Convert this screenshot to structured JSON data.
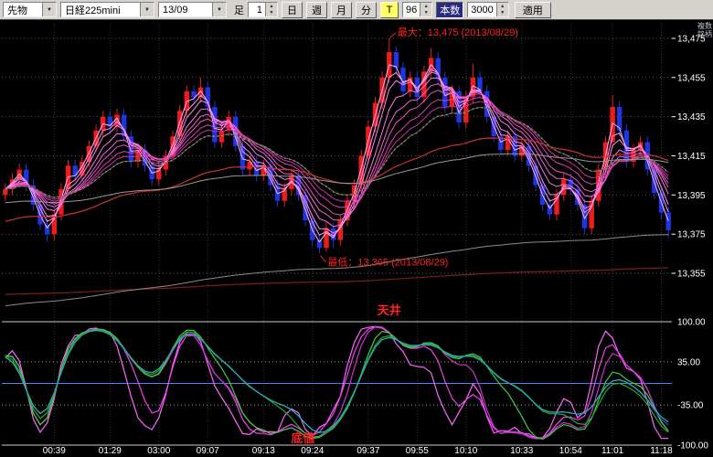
{
  "toolbar": {
    "instrument": "先物",
    "symbol": "日経225mini",
    "contract": "13/09",
    "interval_label": "足",
    "interval_value": "1",
    "day": "日",
    "week": "週",
    "month": "月",
    "minute": "分",
    "tick": "T",
    "bars_value": "96",
    "bars_label": "本数",
    "count_value": "3000",
    "apply": "適用",
    "multi_symbol": "複数銘柄"
  },
  "chart_data": {
    "type": "candlestick",
    "title": "日経225mini 13/09",
    "date": "2013/08/29",
    "y_axis": {
      "labels": [
        "13,475",
        "13,455",
        "13,435",
        "13,415",
        "13,395",
        "13,375",
        "13,355"
      ],
      "values": [
        13475,
        13455,
        13435,
        13415,
        13395,
        13375,
        13355
      ],
      "max": 13475,
      "min": 13365
    },
    "lower_axis": {
      "labels": [
        "100.00",
        "35.00",
        "-35.00",
        "-100.00"
      ],
      "values": [
        100,
        35,
        -35,
        -100
      ]
    },
    "x_labels": [
      {
        "t": "00:39",
        "i": 7
      },
      {
        "t": "01:29",
        "i": 15
      },
      {
        "t": "03:00",
        "i": 22
      },
      {
        "t": "09:07",
        "i": 29
      },
      {
        "t": "09:13",
        "i": 37
      },
      {
        "t": "09:24",
        "i": 44
      },
      {
        "t": "09:37",
        "i": 52
      },
      {
        "t": "09:55",
        "i": 59
      },
      {
        "t": "10:10",
        "i": 66
      },
      {
        "t": "10:33",
        "i": 74
      },
      {
        "t": "10:54",
        "i": 81
      },
      {
        "t": "11:01",
        "i": 87
      },
      {
        "t": "11:18",
        "i": 94
      }
    ],
    "candles": [
      [
        13395,
        13401,
        13392,
        13398
      ],
      [
        13398,
        13406,
        13395,
        13403
      ],
      [
        13403,
        13411,
        13400,
        13408
      ],
      [
        13408,
        13411,
        13397,
        13400
      ],
      [
        13400,
        13403,
        13387,
        13390
      ],
      [
        13390,
        13393,
        13377,
        13380
      ],
      [
        13380,
        13383,
        13371,
        13375
      ],
      [
        13375,
        13388,
        13372,
        13385
      ],
      [
        13385,
        13401,
        13382,
        13398
      ],
      [
        13398,
        13413,
        13395,
        13410
      ],
      [
        13410,
        13413,
        13402,
        13405
      ],
      [
        13405,
        13415,
        13402,
        13412
      ],
      [
        13412,
        13423,
        13409,
        13420
      ],
      [
        13420,
        13431,
        13417,
        13428
      ],
      [
        13428,
        13438,
        13425,
        13435
      ],
      [
        13435,
        13438,
        13427,
        13430
      ],
      [
        13430,
        13439,
        13427,
        13436
      ],
      [
        13436,
        13439,
        13422,
        13425
      ],
      [
        13425,
        13428,
        13409,
        13412
      ],
      [
        13412,
        13421,
        13409,
        13418
      ],
      [
        13418,
        13421,
        13407,
        13410
      ],
      [
        13410,
        13413,
        13400,
        13403
      ],
      [
        13403,
        13411,
        13400,
        13408
      ],
      [
        13408,
        13418,
        13405,
        13415
      ],
      [
        13415,
        13428,
        13412,
        13425
      ],
      [
        13425,
        13441,
        13422,
        13438
      ],
      [
        13438,
        13451,
        13435,
        13448
      ],
      [
        13448,
        13451,
        13442,
        13445
      ],
      [
        13445,
        13455,
        13442,
        13450
      ],
      [
        13450,
        13453,
        13437,
        13440
      ],
      [
        13440,
        13443,
        13419,
        13422
      ],
      [
        13422,
        13431,
        13419,
        13428
      ],
      [
        13428,
        13438,
        13425,
        13435
      ],
      [
        13435,
        13438,
        13417,
        13420
      ],
      [
        13420,
        13423,
        13405,
        13408
      ],
      [
        13408,
        13415,
        13405,
        13412
      ],
      [
        13412,
        13415,
        13402,
        13405
      ],
      [
        13405,
        13413,
        13402,
        13410
      ],
      [
        13410,
        13413,
        13397,
        13400
      ],
      [
        13400,
        13403,
        13389,
        13392
      ],
      [
        13392,
        13401,
        13389,
        13398
      ],
      [
        13398,
        13408,
        13395,
        13405
      ],
      [
        13405,
        13408,
        13392,
        13395
      ],
      [
        13395,
        13398,
        13379,
        13382
      ],
      [
        13382,
        13385,
        13369,
        13372
      ],
      [
        13372,
        13375,
        13365,
        13368
      ],
      [
        13368,
        13381,
        13366,
        13378
      ],
      [
        13378,
        13381,
        13368,
        13372
      ],
      [
        13372,
        13385,
        13369,
        13382
      ],
      [
        13382,
        13395,
        13379,
        13392
      ],
      [
        13392,
        13403,
        13389,
        13400
      ],
      [
        13400,
        13418,
        13397,
        13415
      ],
      [
        13415,
        13433,
        13412,
        13430
      ],
      [
        13430,
        13445,
        13427,
        13442
      ],
      [
        13442,
        13458,
        13439,
        13455
      ],
      [
        13455,
        13475,
        13452,
        13468
      ],
      [
        13468,
        13471,
        13457,
        13460
      ],
      [
        13460,
        13463,
        13445,
        13448
      ],
      [
        13448,
        13458,
        13445,
        13455
      ],
      [
        13455,
        13458,
        13442,
        13445
      ],
      [
        13445,
        13461,
        13442,
        13458
      ],
      [
        13458,
        13470,
        13455,
        13465
      ],
      [
        13465,
        13468,
        13452,
        13455
      ],
      [
        13455,
        13458,
        13437,
        13440
      ],
      [
        13440,
        13451,
        13437,
        13448
      ],
      [
        13448,
        13451,
        13429,
        13432
      ],
      [
        13432,
        13448,
        13429,
        13445
      ],
      [
        13445,
        13462,
        13442,
        13455
      ],
      [
        13455,
        13458,
        13445,
        13448
      ],
      [
        13448,
        13451,
        13432,
        13435
      ],
      [
        13435,
        13438,
        13422,
        13425
      ],
      [
        13425,
        13428,
        13415,
        13418
      ],
      [
        13418,
        13428,
        13415,
        13425
      ],
      [
        13425,
        13428,
        13412,
        13415
      ],
      [
        13415,
        13423,
        13412,
        13420
      ],
      [
        13420,
        13423,
        13407,
        13410
      ],
      [
        13410,
        13413,
        13397,
        13400
      ],
      [
        13400,
        13403,
        13387,
        13390
      ],
      [
        13390,
        13393,
        13382,
        13385
      ],
      [
        13385,
        13398,
        13382,
        13395
      ],
      [
        13395,
        13406,
        13392,
        13403
      ],
      [
        13403,
        13406,
        13395,
        13398
      ],
      [
        13398,
        13401,
        13387,
        13390
      ],
      [
        13390,
        13393,
        13375,
        13378
      ],
      [
        13378,
        13395,
        13375,
        13392
      ],
      [
        13392,
        13411,
        13389,
        13408
      ],
      [
        13408,
        13425,
        13405,
        13422
      ],
      [
        13422,
        13446,
        13419,
        13440
      ],
      [
        13440,
        13443,
        13425,
        13428
      ],
      [
        13428,
        13431,
        13409,
        13412
      ],
      [
        13412,
        13421,
        13409,
        13418
      ],
      [
        13418,
        13425,
        13415,
        13422
      ],
      [
        13422,
        13425,
        13405,
        13408
      ],
      [
        13408,
        13411,
        13393,
        13396
      ],
      [
        13396,
        13399,
        13383,
        13386
      ],
      [
        13386,
        13389,
        13373,
        13377
      ]
    ],
    "overlays": [
      {
        "period": 2,
        "color": "#ffb3ff"
      },
      {
        "period": 3,
        "color": "#ff9bf5"
      },
      {
        "period": 4,
        "color": "#ff8bee"
      },
      {
        "period": 6,
        "color": "#ff77e4"
      },
      {
        "period": 8,
        "color": "#f564d6"
      },
      {
        "period": 10,
        "color": "#ea52c6"
      },
      {
        "period": 13,
        "color": "#dd41b4"
      },
      {
        "period": 16,
        "color": "#cc33a2"
      },
      {
        "period": 20,
        "color": "#b82a90"
      },
      {
        "period": 20,
        "color": "#2ecc2e",
        "dash": "2,3",
        "width": 1.4
      },
      {
        "period": 55,
        "color": "#cc3333",
        "seed": 13381,
        "width": 1.2
      },
      {
        "period": 100,
        "color": "#999999",
        "seed": 13391
      },
      {
        "period": 900,
        "color": "#7a1f1f",
        "seed": 13344,
        "width": 1.2
      },
      {
        "period": 300,
        "color": "#8c8c8c",
        "seed": 13338
      }
    ],
    "lower_series": [
      {
        "period": 8,
        "color": "#ff66ff",
        "smooth": 1
      },
      {
        "period": 12,
        "color": "#ee44ee",
        "smooth": 2
      },
      {
        "period": 17,
        "color": "#cc33cc",
        "smooth": 2
      },
      {
        "period": 24,
        "color": "#44cc44",
        "smooth": 2
      },
      {
        "period": 34,
        "color": "#2aa82a",
        "smooth": 3
      },
      {
        "period": 48,
        "color": "#2255cc",
        "smooth": 4
      },
      {
        "period": 64,
        "color": "#28b0b0",
        "smooth": 4
      }
    ],
    "annotations": {
      "max_label": "最大：13,475 (2013/08/29)",
      "min_label": "最低：13,365 (2013/08/29)",
      "ceiling_label": "天井",
      "bottom_label": "底値",
      "color": "#ff2222"
    },
    "colors": {
      "up": "#ee1c1c",
      "down": "#2034e0",
      "background": "#000000",
      "grid_v": "#333333",
      "grid_h": "#5a5a5a",
      "panel_line": "#cccccc",
      "zero_line": "#4488ff",
      "axis_text": "#ffffff"
    }
  }
}
